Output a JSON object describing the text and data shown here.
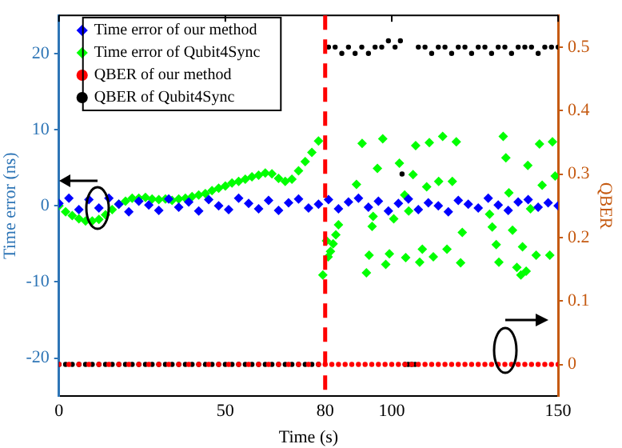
{
  "chart_data": {
    "type": "scatter",
    "xlabel": "Time (s)",
    "ylabel": "Time error (ns)",
    "y2label": "QBER",
    "xlim": [
      0,
      150
    ],
    "xticks": [
      0,
      50,
      80,
      100,
      150
    ],
    "ylim": [
      -25,
      25
    ],
    "yticks": [
      -20,
      -10,
      0,
      10,
      20
    ],
    "y2lim": [
      -0.05,
      0.55
    ],
    "y2ticks": [
      0,
      0.1,
      0.2,
      0.3,
      0.4,
      0.5
    ],
    "grid": false,
    "legend": "top left",
    "ref_lines": [
      {
        "axis": "x",
        "value": 80,
        "color": "#ff0000",
        "line_style": "dashed"
      }
    ],
    "series": [
      {
        "name": "Time error of our method",
        "color": "#0000ff",
        "marker": "diamond",
        "x": [
          0,
          3,
          6,
          9,
          12,
          15,
          18,
          21,
          24,
          27,
          30,
          33,
          36,
          39,
          42,
          45,
          48,
          51,
          54,
          57,
          60,
          63,
          66,
          69,
          72,
          75,
          78,
          81,
          84,
          87,
          90,
          93,
          96,
          99,
          102,
          105,
          108,
          111,
          114,
          117,
          120,
          123,
          126,
          129,
          132,
          135,
          138,
          141,
          144,
          147,
          150
        ],
        "values": [
          0.3,
          1,
          -0.5,
          0.8,
          -0.3,
          1,
          0.2,
          -0.8,
          0.6,
          0.1,
          -0.6,
          0.9,
          -0.2,
          0.5,
          -0.7,
          0.8,
          0,
          -0.5,
          1,
          0.3,
          -0.4,
          0.7,
          -0.6,
          0.4,
          0.9,
          -0.3,
          0.2,
          0.8,
          -0.4,
          0.5,
          1,
          -0.2,
          0.6,
          -0.7,
          0.3,
          0.9,
          -0.5,
          0.4,
          0,
          -0.8,
          0.7,
          0.2,
          -0.3,
          1,
          0.1,
          -0.6,
          0.5,
          0.8,
          -0.2,
          0.4,
          0
        ]
      },
      {
        "name": "Time error of Qubit4Sync",
        "color": "#00ff00",
        "marker": "diamond",
        "x": [
          0,
          2,
          4,
          6,
          8,
          10,
          12,
          14,
          16,
          18,
          20,
          22,
          24,
          26,
          28,
          30,
          32,
          34,
          36,
          38,
          40,
          42,
          44,
          46,
          48,
          50,
          52,
          54,
          56,
          58,
          60,
          62,
          64,
          66,
          68,
          70,
          72,
          74,
          76,
          78,
          79.3,
          80.4,
          80.9,
          81.6,
          82.4,
          83.2,
          84,
          89.4,
          91.1,
          92.4,
          93.2,
          94.1,
          94.4,
          95.7,
          97.3,
          98.2,
          99.3,
          100.6,
          102.3,
          103.9,
          104.2,
          105.1,
          106.4,
          107.2,
          108.4,
          109.2,
          110.5,
          111.3,
          112.5,
          114.1,
          115.3,
          116.6,
          118.2,
          119.4,
          120.7,
          121.2,
          129.4,
          130.2,
          131.4,
          132.2,
          133.5,
          134.3,
          135.2,
          136.3,
          137.6,
          138.8,
          139.3,
          140.4,
          140.9,
          141.7,
          143.4,
          144.4,
          145.2,
          147.5,
          148.3,
          149.1
        ],
        "values": [
          0,
          -0.8,
          -1.3,
          -1.7,
          -2,
          -2,
          -1.8,
          -1.2,
          -0.5,
          0.2,
          0.6,
          1,
          1,
          1.1,
          0.9,
          0.8,
          0.9,
          0.7,
          0.9,
          1,
          1.2,
          1.4,
          1.6,
          2,
          2.3,
          2.6,
          3,
          3.2,
          3.5,
          3.8,
          4,
          4.3,
          4.2,
          3.6,
          3.2,
          3.5,
          4.6,
          5.8,
          7,
          8.5,
          -9.1,
          -4.6,
          -6.7,
          -6,
          -5,
          -3.8,
          -2.5,
          2.8,
          8.2,
          -8.8,
          -6.5,
          -2.7,
          -1.4,
          4.9,
          8.8,
          -7.7,
          -6.3,
          -1.7,
          5.6,
          1.4,
          -6.8,
          -0.7,
          4.1,
          7.9,
          -7.4,
          -5.7,
          2.5,
          8.3,
          -6.7,
          3.2,
          9.1,
          -5.7,
          3.2,
          8.4,
          -7.5,
          -3.5,
          -1.1,
          -2.8,
          -5.1,
          -7.4,
          9.1,
          6.3,
          1.7,
          -3.2,
          -8.1,
          -9.1,
          -5.4,
          -8.6,
          5.3,
          -0.4,
          -6.5,
          8.1,
          2.7,
          -6.5,
          8.4,
          3.9
        ]
      },
      {
        "name": "QBER of our method",
        "color": "#ff0000",
        "marker": "circle",
        "axis": "y2",
        "x": [
          0,
          3,
          6,
          9,
          12,
          15,
          18,
          21,
          24,
          27,
          30,
          33,
          36,
          39,
          42,
          45,
          48,
          51,
          54,
          57,
          60,
          63,
          66,
          69,
          72,
          75,
          78,
          80,
          82,
          84,
          86,
          88,
          90,
          92,
          94,
          96,
          98,
          100,
          102,
          104,
          106,
          108,
          110,
          112,
          114,
          116,
          118,
          120,
          122,
          124,
          126,
          128,
          130,
          132,
          134,
          136,
          138,
          140,
          142,
          144,
          146,
          148,
          150
        ],
        "values": [
          0,
          0,
          0,
          0,
          0,
          0,
          0,
          0,
          0,
          0,
          0,
          0,
          0,
          0,
          0,
          0,
          0,
          0,
          0,
          0,
          0,
          0,
          0,
          0,
          0,
          0,
          0,
          0,
          0,
          0,
          0,
          0,
          0,
          0,
          0,
          0,
          0,
          0,
          0,
          0,
          0,
          0,
          0,
          0,
          0,
          0,
          0,
          0,
          0,
          0,
          0,
          0,
          0,
          0,
          0,
          0,
          0,
          0,
          0,
          0,
          0,
          0,
          0
        ]
      },
      {
        "name": "QBER of Qubit4Sync",
        "color": "#000000",
        "marker": "circle",
        "axis": "y2",
        "x": [
          0,
          2,
          4,
          6,
          8,
          10,
          12,
          14,
          16,
          18,
          20,
          22,
          24,
          26,
          28,
          30,
          32,
          34,
          36,
          38,
          40,
          42,
          44,
          46,
          48,
          50,
          52,
          54,
          56,
          58,
          60,
          62,
          64,
          66,
          68,
          70,
          72,
          74,
          76,
          78,
          81,
          83,
          85,
          87,
          89,
          91,
          93,
          95,
          97,
          99,
          101,
          102.6,
          103.1,
          104,
          105,
          106,
          107,
          108,
          110,
          112,
          114,
          116,
          118,
          120,
          122,
          124,
          126,
          128,
          130,
          132,
          134,
          136,
          138,
          140,
          142,
          144,
          146,
          148,
          150
        ],
        "values": [
          0,
          0,
          0,
          0,
          0,
          0,
          0,
          0,
          0,
          0,
          0,
          0,
          0,
          0,
          0,
          0,
          0,
          0,
          0,
          0,
          0,
          0,
          0,
          0,
          0,
          0,
          0,
          0,
          0,
          0,
          0,
          0,
          0,
          0,
          0,
          0,
          0,
          0,
          0,
          0,
          0.5,
          0.5,
          0.49,
          0.5,
          0.49,
          0.5,
          0.49,
          0.5,
          0.5,
          0.51,
          0.5,
          0.51,
          0.3,
          0,
          0,
          0,
          0,
          0.5,
          0.5,
          0.49,
          0.5,
          0.5,
          0.49,
          0.5,
          0.5,
          0.49,
          0.5,
          0.5,
          0.49,
          0.5,
          0.5,
          0.49,
          0.5,
          0.5,
          0.5,
          0.49,
          0.5,
          0.5,
          0.5
        ]
      }
    ]
  }
}
